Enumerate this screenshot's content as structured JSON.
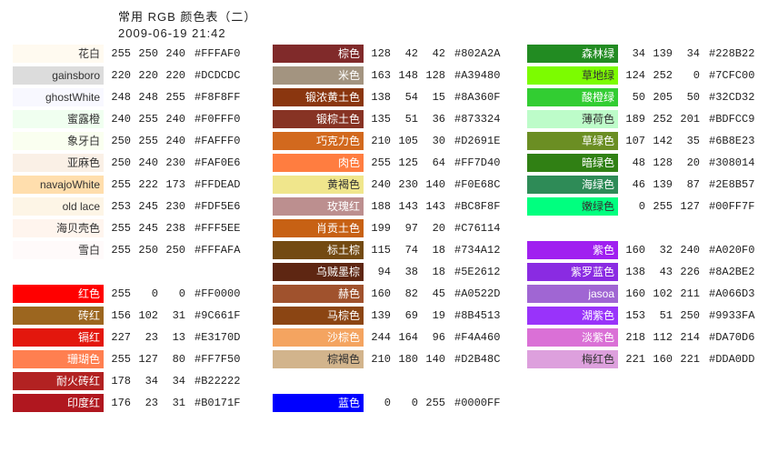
{
  "header": {
    "title": "常用 RGB 颜色表（二）",
    "date": "2009-06-19 21:42"
  },
  "col1": [
    {
      "name": "花白",
      "r": 255,
      "g": 250,
      "b": 240,
      "hex": "#FFFAF0",
      "swatch": "#FFFAF0",
      "darkText": true
    },
    {
      "name": "gainsboro",
      "r": 220,
      "g": 220,
      "b": 220,
      "hex": "#DCDCDC",
      "swatch": "#DCDCDC",
      "darkText": true
    },
    {
      "name": "ghostWhite",
      "r": 248,
      "g": 248,
      "b": 255,
      "hex": "#F8F8FF",
      "swatch": "#F8F8FF",
      "darkText": true
    },
    {
      "name": "蜜露橙",
      "r": 240,
      "g": 255,
      "b": 240,
      "hex": "#F0FFF0",
      "swatch": "#F0FFF0",
      "darkText": true
    },
    {
      "name": "象牙白",
      "r": 250,
      "g": 255,
      "b": 240,
      "hex": "#FAFFF0",
      "swatch": "#FAFFF0",
      "darkText": true
    },
    {
      "name": "亚麻色",
      "r": 250,
      "g": 240,
      "b": 230,
      "hex": "#FAF0E6",
      "swatch": "#FAF0E6",
      "darkText": true
    },
    {
      "name": "navajoWhite",
      "r": 255,
      "g": 222,
      "b": 173,
      "hex": "#FFDEAD",
      "swatch": "#FFDEAD",
      "darkText": true
    },
    {
      "name": "old lace",
      "r": 253,
      "g": 245,
      "b": 230,
      "hex": "#FDF5E6",
      "swatch": "#FDF5E6",
      "darkText": true
    },
    {
      "name": "海贝壳色",
      "r": 255,
      "g": 245,
      "b": 238,
      "hex": "#FFF5EE",
      "swatch": "#FFF5EE",
      "darkText": true
    },
    {
      "name": "雪白",
      "r": 255,
      "g": 250,
      "b": 250,
      "hex": "#FFFAFA",
      "swatch": "#FFFAFA",
      "darkText": true
    },
    {
      "spacer": true
    },
    {
      "name": "红色",
      "r": 255,
      "g": 0,
      "b": 0,
      "hex": "#FF0000",
      "swatch": "#FF0000"
    },
    {
      "name": "砖红",
      "r": 156,
      "g": 102,
      "b": 31,
      "hex": "#9C661F",
      "swatch": "#9C661F"
    },
    {
      "name": "镉红",
      "r": 227,
      "g": 23,
      "b": 13,
      "hex": "#E3170D",
      "swatch": "#E3170D"
    },
    {
      "name": "珊瑚色",
      "r": 255,
      "g": 127,
      "b": 80,
      "hex": "#FF7F50",
      "swatch": "#FF7F50"
    },
    {
      "name": "耐火砖红",
      "r": 178,
      "g": 34,
      "b": 34,
      "hex": "#B22222",
      "swatch": "#B22222"
    },
    {
      "name": "印度红",
      "r": 176,
      "g": 23,
      "b": 31,
      "hex": "#B0171F",
      "swatch": "#B0171F"
    }
  ],
  "col2": [
    {
      "name": "棕色",
      "r": 128,
      "g": 42,
      "b": 42,
      "hex": "#802A2A",
      "swatch": "#802A2A"
    },
    {
      "name": "米色",
      "r": 163,
      "g": 148,
      "b": 128,
      "hex": "#A39480",
      "swatch": "#A39480"
    },
    {
      "name": "锻浓黄土色",
      "r": 138,
      "g": 54,
      "b": 15,
      "hex": "#8A360F",
      "swatch": "#8A360F"
    },
    {
      "name": "锻棕土色",
      "r": 135,
      "g": 51,
      "b": 36,
      "hex": "#873324",
      "swatch": "#873324"
    },
    {
      "name": "巧克力色",
      "r": 210,
      "g": 105,
      "b": 30,
      "hex": "#D2691E",
      "swatch": "#D2691E"
    },
    {
      "name": "肉色",
      "r": 255,
      "g": 125,
      "b": 64,
      "hex": "#FF7D40",
      "swatch": "#FF7D40"
    },
    {
      "name": "黄褐色",
      "r": 240,
      "g": 230,
      "b": 140,
      "hex": "#F0E68C",
      "swatch": "#F0E68C",
      "darkText": true
    },
    {
      "name": "玫瑰红",
      "r": 188,
      "g": 143,
      "b": 143,
      "hex": "#BC8F8F",
      "swatch": "#BC8F8F"
    },
    {
      "name": "肖贡土色",
      "r": 199,
      "g": 97,
      "b": 20,
      "hex": "#C76114",
      "swatch": "#C76114"
    },
    {
      "name": "标土棕",
      "r": 115,
      "g": 74,
      "b": 18,
      "hex": "#734A12",
      "swatch": "#734A12"
    },
    {
      "name": "乌贼墨棕",
      "r": 94,
      "g": 38,
      "b": 18,
      "hex": "#5E2612",
      "swatch": "#5E2612"
    },
    {
      "name": "赫色",
      "r": 160,
      "g": 82,
      "b": 45,
      "hex": "#A0522D",
      "swatch": "#A0522D"
    },
    {
      "name": "马棕色",
      "r": 139,
      "g": 69,
      "b": 19,
      "hex": "#8B4513",
      "swatch": "#8B4513"
    },
    {
      "name": "沙棕色",
      "r": 244,
      "g": 164,
      "b": 96,
      "hex": "#F4A460",
      "swatch": "#F4A460"
    },
    {
      "name": "棕褐色",
      "r": 210,
      "g": 180,
      "b": 140,
      "hex": "#D2B48C",
      "swatch": "#D2B48C",
      "darkText": true
    },
    {
      "spacer": true
    },
    {
      "name": "蓝色",
      "r": 0,
      "g": 0,
      "b": 255,
      "hex": "#0000FF",
      "swatch": "#0000FF"
    }
  ],
  "col3": [
    {
      "name": "森林绿",
      "r": 34,
      "g": 139,
      "b": 34,
      "hex": "#228B22",
      "swatch": "#228B22"
    },
    {
      "name": "草地绿",
      "r": 124,
      "g": 252,
      "b": 0,
      "hex": "#7CFC00",
      "swatch": "#7CFC00",
      "darkText": true
    },
    {
      "name": "酸橙绿",
      "r": 50,
      "g": 205,
      "b": 50,
      "hex": "#32CD32",
      "swatch": "#32CD32"
    },
    {
      "name": "薄荷色",
      "r": 189,
      "g": 252,
      "b": 201,
      "hex": "#BDFCC9",
      "swatch": "#BDFCC9",
      "darkText": true
    },
    {
      "name": "草绿色",
      "r": 107,
      "g": 142,
      "b": 35,
      "hex": "#6B8E23",
      "swatch": "#6B8E23"
    },
    {
      "name": "暗绿色",
      "r": 48,
      "g": 128,
      "b": 20,
      "hex": "#308014",
      "swatch": "#308014"
    },
    {
      "name": "海绿色",
      "r": 46,
      "g": 139,
      "b": 87,
      "hex": "#2E8B57",
      "swatch": "#2E8B57"
    },
    {
      "name": "嫩绿色",
      "r": 0,
      "g": 255,
      "b": 127,
      "hex": "#00FF7F",
      "swatch": "#00FF7F",
      "darkText": true
    },
    {
      "spacer": true
    },
    {
      "name": "紫色",
      "r": 160,
      "g": 32,
      "b": 240,
      "hex": "#A020F0",
      "swatch": "#A020F0"
    },
    {
      "name": "紫罗蓝色",
      "r": 138,
      "g": 43,
      "b": 226,
      "hex": "#8A2BE2",
      "swatch": "#8A2BE2"
    },
    {
      "name": "jasoa",
      "r": 160,
      "g": 102,
      "b": 211,
      "hex": "#A066D3",
      "swatch": "#A066D3"
    },
    {
      "name": "湖紫色",
      "r": 153,
      "g": 51,
      "b": 250,
      "hex": "#9933FA",
      "swatch": "#9933FA"
    },
    {
      "name": "淡紫色",
      "r": 218,
      "g": 112,
      "b": 214,
      "hex": "#DA70D6",
      "swatch": "#DA70D6"
    },
    {
      "name": "梅红色",
      "r": 221,
      "g": 160,
      "b": 221,
      "hex": "#DDA0DD",
      "swatch": "#DDA0DD",
      "darkText": true
    }
  ]
}
